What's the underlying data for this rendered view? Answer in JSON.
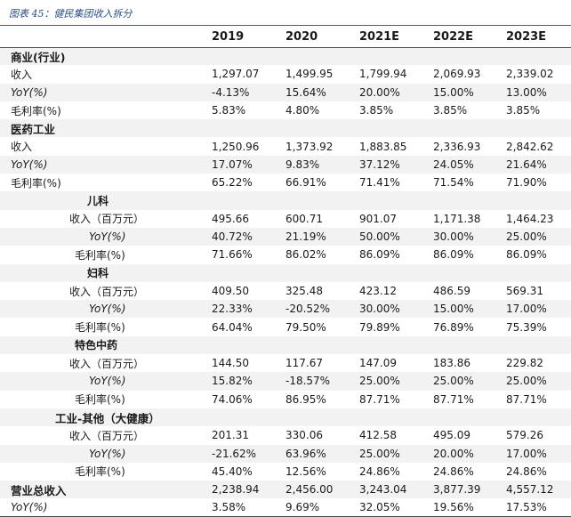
{
  "caption": "图表 45：健民集团收入拆分",
  "header": [
    "",
    "2019",
    "2020",
    "2021E",
    "2022E",
    "2023E"
  ],
  "rows": [
    {
      "label": "商业(行业)",
      "values": [
        "",
        "",
        "",
        "",
        ""
      ]
    },
    {
      "label": "收入",
      "values": [
        "1,297.07",
        "1,499.95",
        "1,799.94",
        "2,069.93",
        "2,339.02"
      ]
    },
    {
      "label": "YoY(%)",
      "values": [
        "-4.13%",
        "15.64%",
        "20.00%",
        "15.00%",
        "13.00%"
      ]
    },
    {
      "label": "毛利率(%)",
      "values": [
        "5.83%",
        "4.80%",
        "3.85%",
        "3.85%",
        "3.85%"
      ]
    },
    {
      "label": "医药工业",
      "values": [
        "",
        "",
        "",
        "",
        ""
      ]
    },
    {
      "label": "收入",
      "values": [
        "1,250.96",
        "1,373.92",
        "1,883.85",
        "2,336.93",
        "2,842.62"
      ]
    },
    {
      "label": "YoY(%)",
      "values": [
        "17.07%",
        "9.83%",
        "37.12%",
        "24.05%",
        "21.64%"
      ]
    },
    {
      "label": "毛利率(%)",
      "values": [
        "65.22%",
        "66.91%",
        "71.41%",
        "71.54%",
        "71.90%"
      ]
    },
    {
      "label": "儿科",
      "values": [
        "",
        "",
        "",
        "",
        ""
      ]
    },
    {
      "label": "收入（百万元）",
      "values": [
        "495.66",
        "600.71",
        "901.07",
        "1,171.38",
        "1,464.23"
      ]
    },
    {
      "label": "YoY(%)",
      "values": [
        "40.72%",
        "21.19%",
        "50.00%",
        "30.00%",
        "25.00%"
      ]
    },
    {
      "label": "毛利率(%)",
      "values": [
        "71.66%",
        "86.02%",
        "86.09%",
        "86.09%",
        "86.09%"
      ]
    },
    {
      "label": "妇科",
      "values": [
        "",
        "",
        "",
        "",
        ""
      ]
    },
    {
      "label": "收入（百万元）",
      "values": [
        "409.50",
        "325.48",
        "423.12",
        "486.59",
        "569.31"
      ]
    },
    {
      "label": "YoY(%)",
      "values": [
        "22.33%",
        "-20.52%",
        "30.00%",
        "15.00%",
        "17.00%"
      ]
    },
    {
      "label": "毛利率(%)",
      "values": [
        "64.04%",
        "79.50%",
        "79.89%",
        "76.89%",
        "75.39%"
      ]
    },
    {
      "label": "特色中药",
      "values": [
        "",
        "",
        "",
        "",
        ""
      ]
    },
    {
      "label": "收入（百万元）",
      "values": [
        "144.50",
        "117.67",
        "147.09",
        "183.86",
        "229.82"
      ]
    },
    {
      "label": "YoY(%)",
      "values": [
        "15.82%",
        "-18.57%",
        "25.00%",
        "25.00%",
        "25.00%"
      ]
    },
    {
      "label": "毛利率(%)",
      "values": [
        "74.06%",
        "86.95%",
        "87.71%",
        "87.71%",
        "87.71%"
      ]
    },
    {
      "label": "工业-其他（大健康）",
      "values": [
        "",
        "",
        "",
        "",
        ""
      ]
    },
    {
      "label": "收入（百万元）",
      "values": [
        "201.31",
        "330.06",
        "412.58",
        "495.09",
        "579.26"
      ]
    },
    {
      "label": "YoY(%)",
      "values": [
        "-21.62%",
        "63.96%",
        "25.00%",
        "20.00%",
        "17.00%"
      ]
    },
    {
      "label": "毛利率(%)",
      "values": [
        "45.40%",
        "12.56%",
        "24.86%",
        "24.86%",
        "24.86%"
      ]
    },
    {
      "label": "营业总收入",
      "values": [
        "2,238.94",
        "2,456.00",
        "3,243.04",
        "3,877.39",
        "4,557.12"
      ]
    },
    {
      "label": "YoY(%)",
      "values": [
        "3.58%",
        "9.69%",
        "32.05%",
        "19.56%",
        "17.53%"
      ]
    }
  ]
}
